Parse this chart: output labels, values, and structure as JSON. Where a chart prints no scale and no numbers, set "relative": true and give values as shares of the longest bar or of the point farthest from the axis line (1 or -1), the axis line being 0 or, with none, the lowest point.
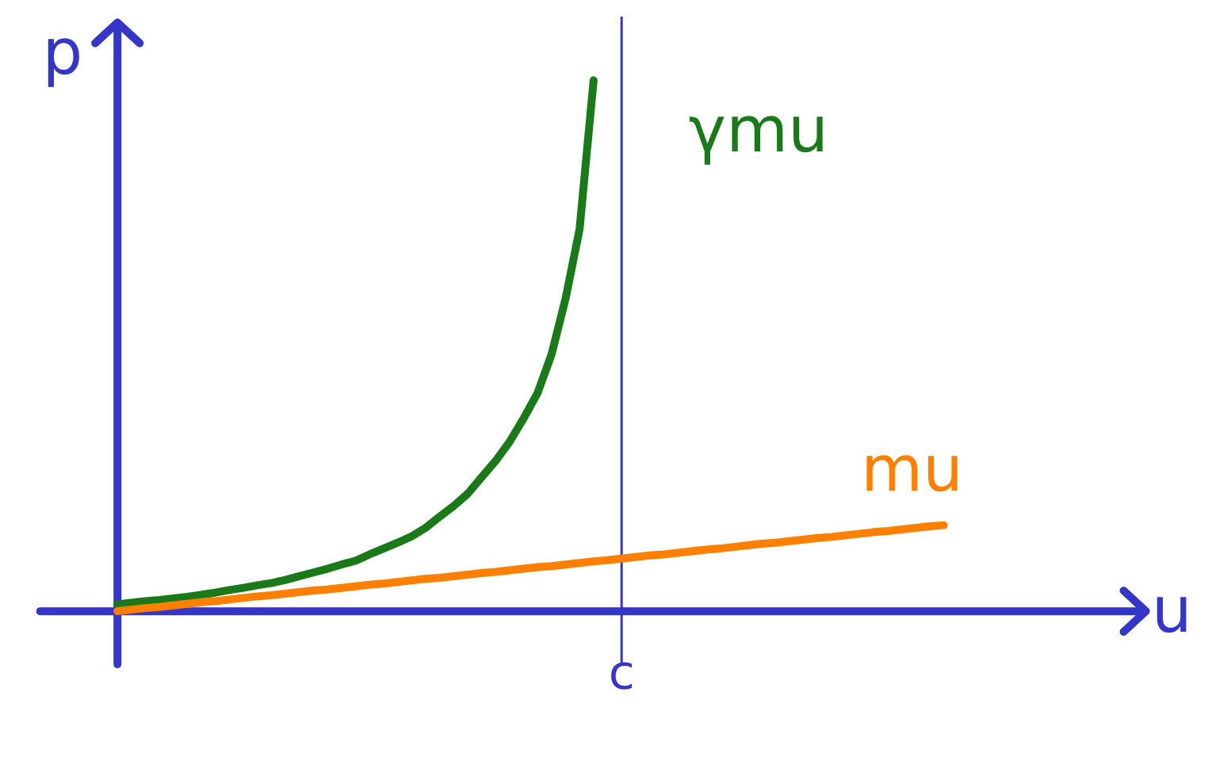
{
  "chart_data": {
    "type": "line",
    "relative": true,
    "xlabel": "u",
    "ylabel": "p",
    "categories": [
      null,
      null,
      null,
      null,
      null,
      null,
      null,
      null,
      null,
      null,
      null,
      null,
      null,
      null,
      null,
      null,
      null,
      null,
      null,
      null,
      null,
      null,
      null,
      null,
      null,
      null,
      null,
      null,
      null,
      null,
      null,
      null,
      null,
      null,
      null,
      null,
      null,
      null,
      null,
      null,
      null,
      null,
      null,
      null,
      null,
      null,
      null,
      null,
      null,
      null,
      null,
      null,
      null,
      null,
      null,
      null,
      null,
      null,
      null,
      null
    ],
    "series": [
      {
        "name": "γmu",
        "color": "#1a7a1a",
        "values": [
          0.013,
          0.016,
          0.019,
          0.021,
          0.024,
          0.027,
          0.031,
          0.035,
          0.04,
          0.044,
          0.049,
          0.053,
          0.059,
          0.066,
          0.073,
          0.08,
          0.088,
          0.095,
          0.107,
          0.118,
          0.129,
          0.141,
          0.157,
          0.178,
          0.198,
          0.221,
          0.252,
          0.283,
          0.319,
          0.363,
          0.411,
          0.484,
          0.589,
          0.72,
          1.0,
          null,
          null,
          null,
          null,
          null,
          null,
          null,
          null,
          null,
          null,
          null,
          null,
          null,
          null,
          null,
          null,
          null,
          null,
          null,
          null,
          null,
          null,
          null,
          null,
          null
        ]
      },
      {
        "name": "mu",
        "color": "#ff8000",
        "values": [
          0,
          0.003,
          0.006,
          0.008,
          0.011,
          0.014,
          0.017,
          0.019,
          0.022,
          0.025,
          0.028,
          0.03,
          0.033,
          0.036,
          0.039,
          0.041,
          0.044,
          0.047,
          0.05,
          0.052,
          0.055,
          0.058,
          0.061,
          0.063,
          0.066,
          0.069,
          0.072,
          0.074,
          0.077,
          0.08,
          0.083,
          0.085,
          0.088,
          0.091,
          0.094,
          0.096,
          0.099,
          0.102,
          0.105,
          0.107,
          0.11,
          0.113,
          0.116,
          0.118,
          0.121,
          0.124,
          0.127,
          0.129,
          0.132,
          0.135,
          0.138,
          0.14,
          0.143,
          0.146,
          0.149,
          0.151,
          0.154,
          0.157,
          0.16,
          0.162
        ]
      }
    ],
    "annotations": [
      "c"
    ],
    "grid": false,
    "marker": "none",
    "line_style": "solid"
  }
}
